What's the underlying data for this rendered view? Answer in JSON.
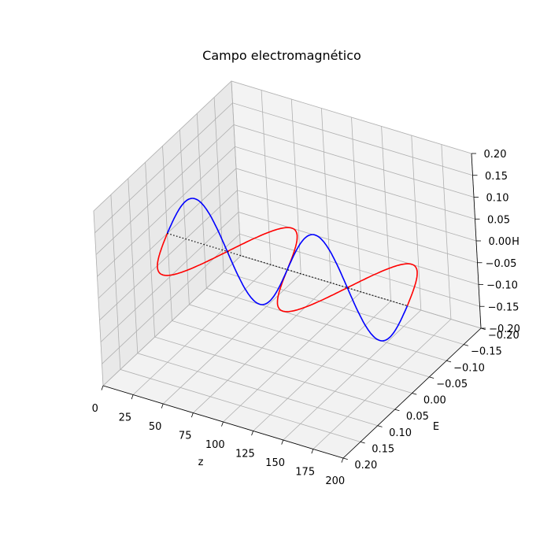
{
  "chart_data": {
    "type": "line",
    "title": "Campo electromagnético",
    "xlabel": "z",
    "ylabel": "E",
    "zlabel": "H",
    "xlim": [
      0,
      200
    ],
    "ylim": [
      -0.2,
      0.2
    ],
    "zlim": [
      -0.2,
      0.2
    ],
    "z_ticks": [
      "0",
      "25",
      "50",
      "75",
      "100",
      "125",
      "150",
      "175",
      "200"
    ],
    "e_ticks": [
      "−0.20",
      "−0.15",
      "−0.10",
      "−0.05",
      "0.00",
      "0.05",
      "0.10",
      "0.15",
      "0.20"
    ],
    "h_ticks": [
      "−0.20",
      "−0.15",
      "−0.10",
      "−0.05",
      "0.00",
      "0.05",
      "0.10",
      "0.15",
      "0.20"
    ],
    "grid": true,
    "series": [
      {
        "field": "E",
        "color": "#ff0000",
        "amplitude": 0.1,
        "cycles": 2,
        "z_range": [
          0,
          200
        ]
      },
      {
        "field": "H",
        "color": "#0000ff",
        "amplitude": 0.1,
        "cycles": 2,
        "z_range": [
          0,
          200
        ]
      },
      {
        "field": "axis",
        "color": "#000000",
        "style": "dotted",
        "z_range": [
          0,
          200
        ]
      }
    ]
  }
}
